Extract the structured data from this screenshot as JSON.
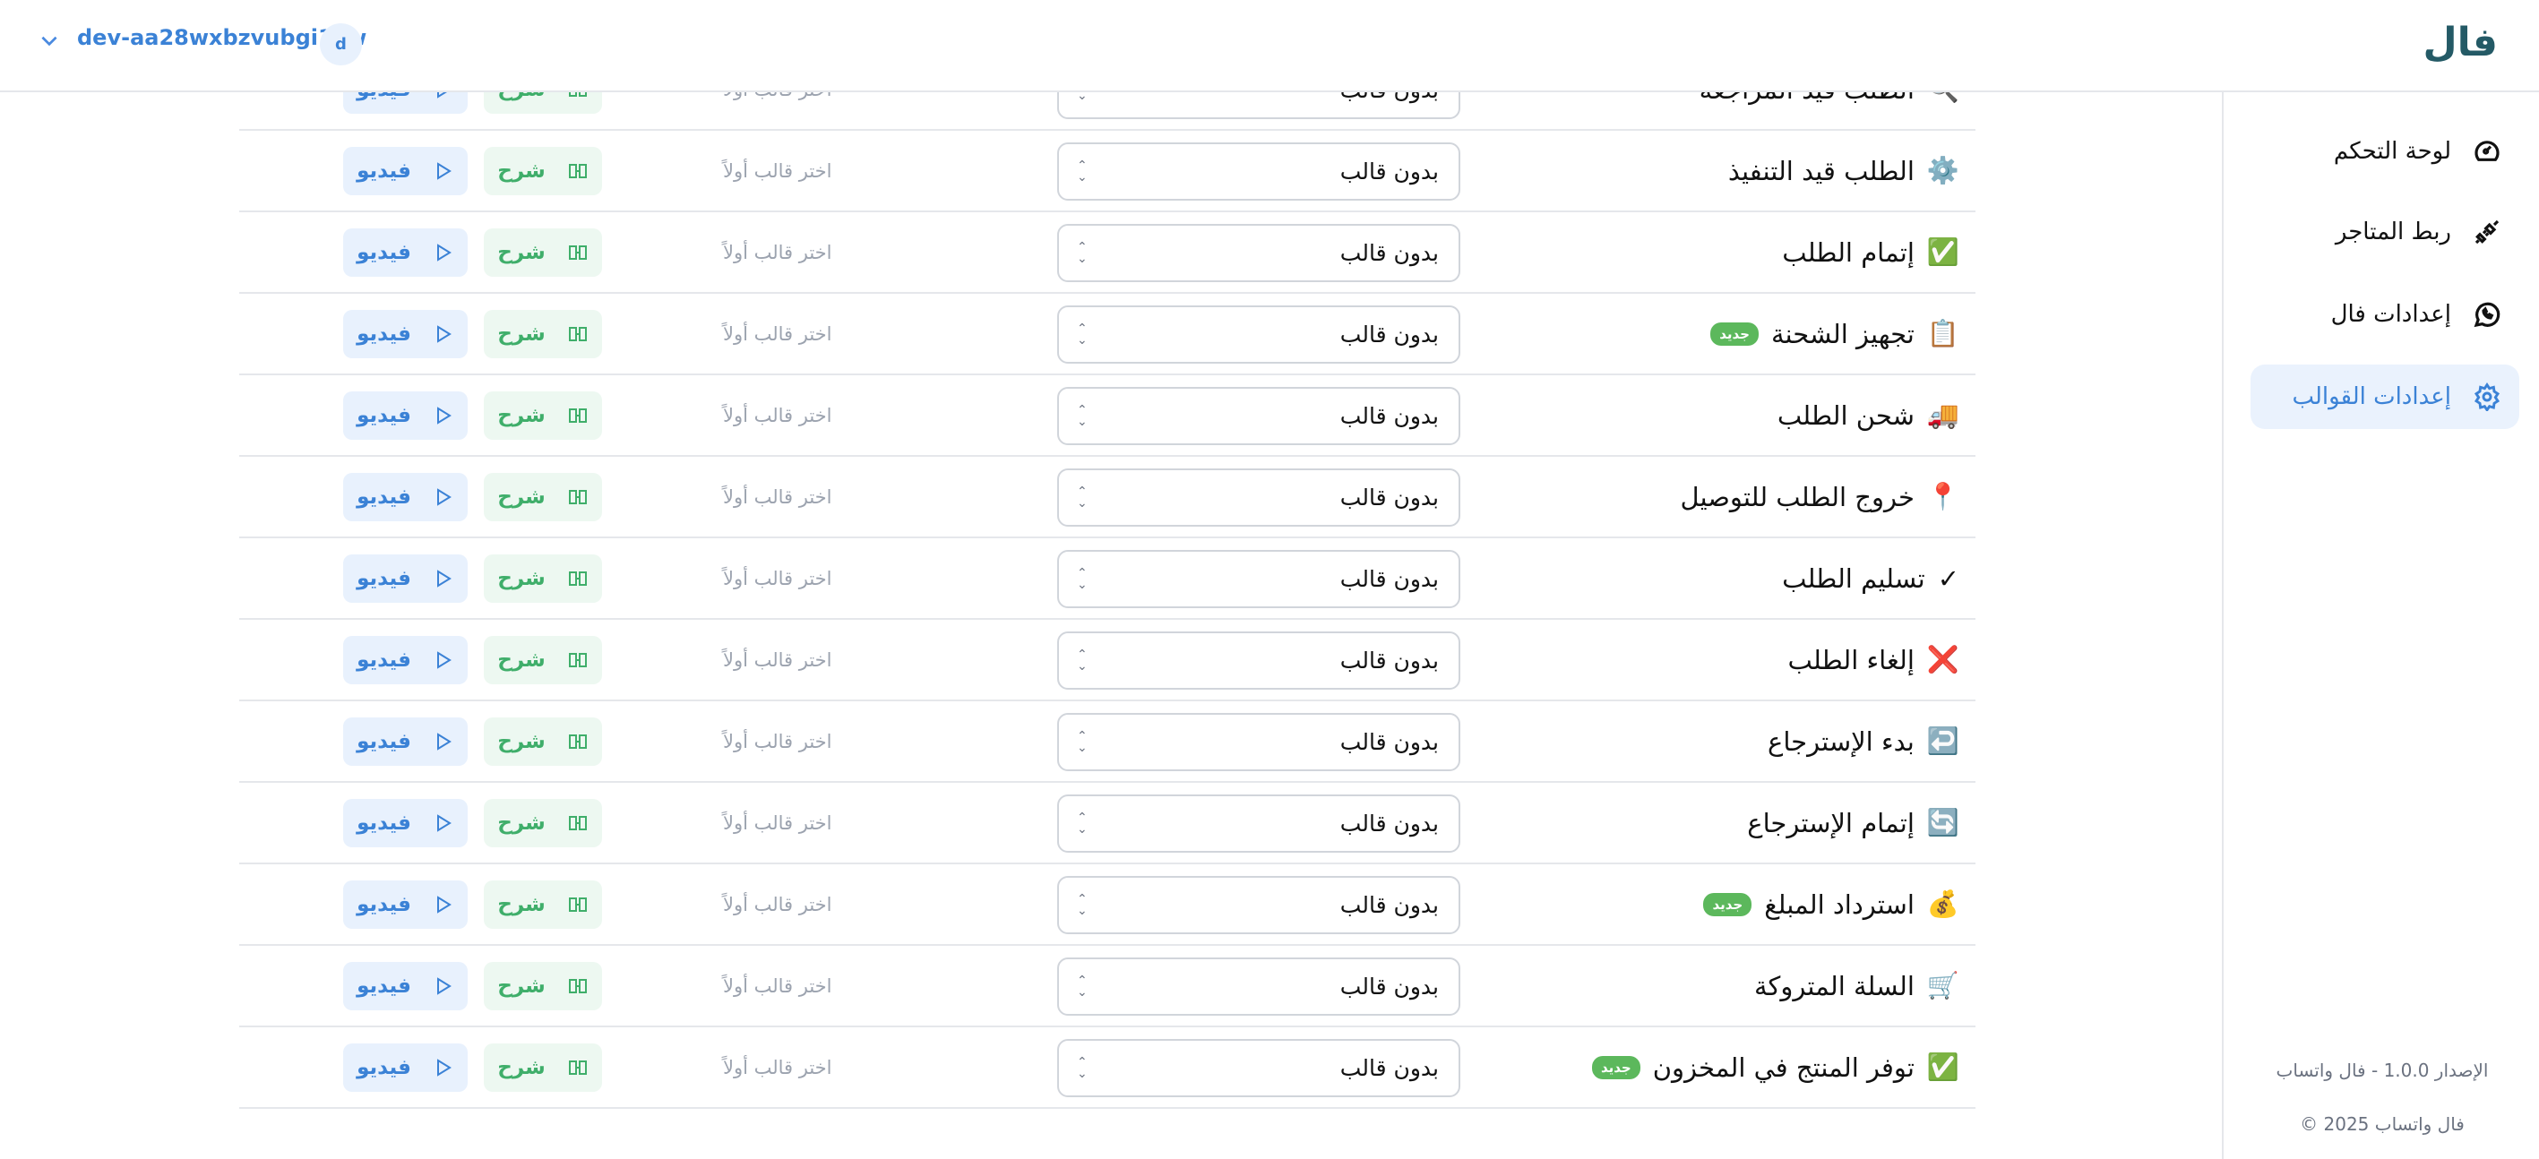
{
  "header": {
    "org_name": "dev-aa28wxbzvubgi1xw",
    "avatar_letter": "d",
    "logo": "فال"
  },
  "sidebar": {
    "items": [
      {
        "label": "لوحة التحكم",
        "icon": "gauge-icon"
      },
      {
        "label": "ربط المتاجر",
        "icon": "plug-icon"
      },
      {
        "label": "إعدادات فال",
        "icon": "whatsapp-icon"
      },
      {
        "label": "إعدادات القوالب",
        "icon": "gear-icon",
        "active": true
      }
    ],
    "version": "الإصدار 1.0.0 - فال واتساب",
    "copyright": "© 2025 فال واتساب"
  },
  "colors": {
    "accent": "#3b82d6",
    "green": "#3fae6a",
    "badge": "#5cb85c",
    "logo": "#245a66"
  },
  "rows_common": {
    "select_value": "بدون قالب",
    "hint": "اختر قالب أولاً",
    "explain_label": "شرح",
    "video_label": "فيديو",
    "new_badge": "جديد"
  },
  "rows": [
    {
      "emoji": "🔍",
      "label": "الطلب قيد المراجعة",
      "new": false
    },
    {
      "emoji": "⚙️",
      "label": "الطلب قيد التنفيذ",
      "new": false
    },
    {
      "emoji": "✅",
      "label": "إتمام الطلب",
      "new": false
    },
    {
      "emoji": "📋",
      "label": "تجهيز الشحنة",
      "new": true
    },
    {
      "emoji": "🚚",
      "label": "شحن الطلب",
      "new": false
    },
    {
      "emoji": "📍",
      "label": "خروج الطلب للتوصيل",
      "new": false
    },
    {
      "emoji": "✓",
      "label": "تسليم الطلب",
      "new": false
    },
    {
      "emoji": "❌",
      "label": "إلغاء الطلب",
      "new": false
    },
    {
      "emoji": "↩️",
      "label": "بدء الإسترجاع",
      "new": false
    },
    {
      "emoji": "🔄",
      "label": "إتمام الإسترجاع",
      "new": false
    },
    {
      "emoji": "💰",
      "label": "استرداد المبلغ",
      "new": true
    },
    {
      "emoji": "🛒",
      "label": "السلة المتروكة",
      "new": false
    },
    {
      "emoji": "✅",
      "label": "توفر المنتج في المخزون",
      "new": true
    }
  ]
}
